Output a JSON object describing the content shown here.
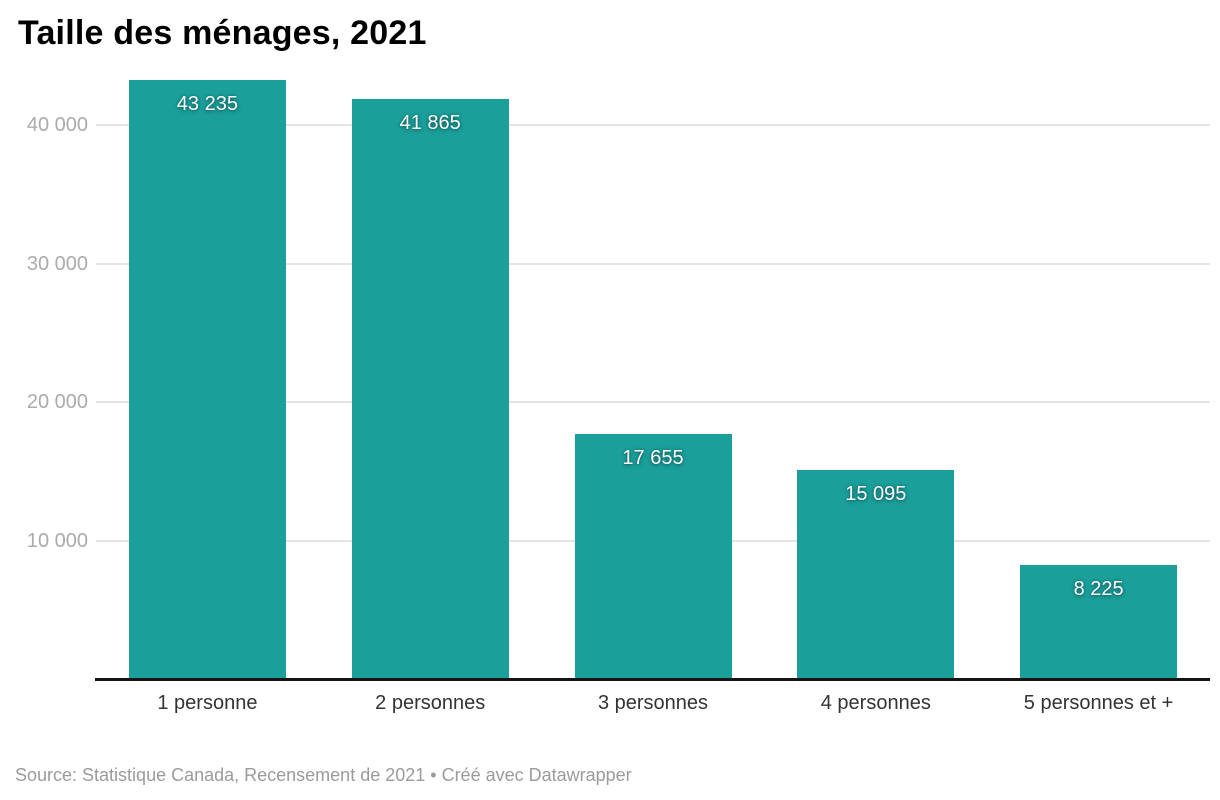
{
  "title": "Taille des ménages, 2021",
  "footer": {
    "full_text": "Source: Statistique Canada, Recensement de 2021 • Créé avec Datawrapper",
    "source_text": "Source: Statistique Canada, Recensement de 2021",
    "credit_text": "Créé avec Datawrapper"
  },
  "colors": {
    "bar": "#1a9f9b",
    "grid": "#e4e4e4",
    "axis": "#141414",
    "y_tick_label": "#ababab",
    "x_label": "#333333",
    "value_label": "#ffffff",
    "title": "#000000",
    "footer": "#9b9b9b",
    "background": "#ffffff"
  },
  "chart_data": {
    "type": "bar",
    "title": "Taille des ménages, 2021",
    "categories": [
      "1 personne",
      "2 personnes",
      "3 personnes",
      "4 personnes",
      "5 personnes et +"
    ],
    "values": [
      43235,
      41865,
      17655,
      15095,
      8225
    ],
    "value_labels": [
      "43 235",
      "41 865",
      "17 655",
      "15 095",
      "8 225"
    ],
    "xlabel": "",
    "ylabel": "",
    "ylim": [
      0,
      44000
    ],
    "y_ticks": [
      {
        "value": 10000,
        "label": "10 000"
      },
      {
        "value": 20000,
        "label": "20 000"
      },
      {
        "value": 30000,
        "label": "30 000"
      },
      {
        "value": 40000,
        "label": "40 000"
      }
    ],
    "grid": "horizontal",
    "legend": "none",
    "source": "Statistique Canada, Recensement de 2021",
    "credit": "Créé avec Datawrapper"
  }
}
